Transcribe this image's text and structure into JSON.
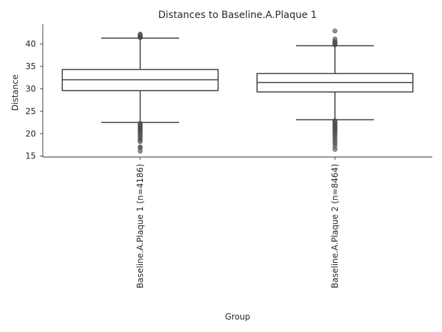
{
  "chart_data": {
    "type": "box",
    "title": "Distances to Baseline.A.Plaque 1",
    "xlabel": "Group",
    "ylabel": "Distance",
    "ylim": [
      14.8,
      44.4
    ],
    "yticks": [
      15,
      20,
      25,
      30,
      35,
      40
    ],
    "grid": false,
    "categories": [
      "Baseline.A.Plaque 1 (n=4186)",
      "Baseline.A.Plaque 2 (n=8464)"
    ],
    "boxes": [
      {
        "category": "Baseline.A.Plaque 1 (n=4186)",
        "whisker_low": 22.5,
        "q1": 29.6,
        "median": 32.0,
        "q3": 34.3,
        "whisker_high": 41.3,
        "outliers": [
          41.4,
          41.6,
          41.8,
          42.0,
          42.2,
          22.3,
          22.0,
          21.7,
          21.4,
          21.1,
          20.8,
          20.5,
          20.2,
          19.8,
          19.4,
          19.0,
          18.6,
          18.2,
          17.0,
          16.9,
          16.1
        ]
      },
      {
        "category": "Baseline.A.Plaque 2 (n=8464)",
        "whisker_low": 23.1,
        "q1": 29.3,
        "median": 31.4,
        "q3": 33.4,
        "whisker_high": 39.6,
        "outliers": [
          39.8,
          40.1,
          40.3,
          40.6,
          41.1,
          42.9,
          22.9,
          22.6,
          22.3,
          22.0,
          21.7,
          21.4,
          21.1,
          20.8,
          20.5,
          20.1,
          19.7,
          19.3,
          18.8,
          18.3,
          17.8,
          17.2,
          16.5
        ]
      }
    ]
  }
}
